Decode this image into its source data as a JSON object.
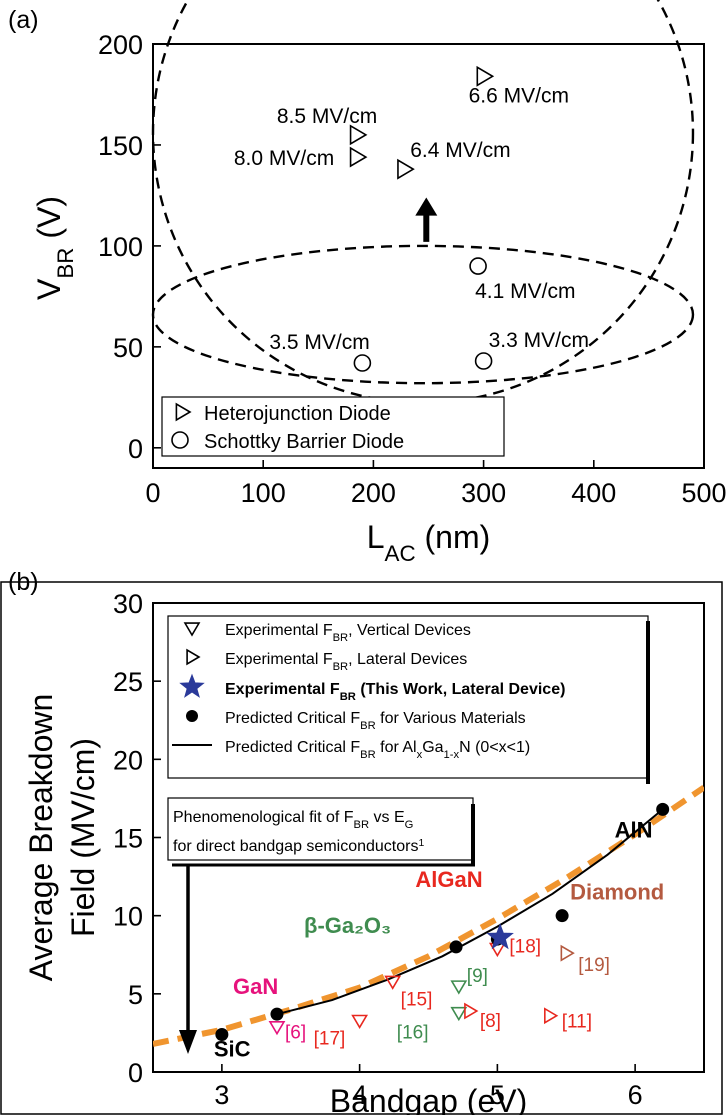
{
  "chart_data": [
    {
      "panel": "(a)",
      "type": "scatter",
      "xlabel_main": "L",
      "xlabel_sub": "AC",
      "xlabel_unit": " (nm)",
      "ylabel_main": "V",
      "ylabel_sub": "BR",
      "ylabel_unit": " (V)",
      "xlim": [
        0,
        500
      ],
      "ylim": [
        -10,
        200
      ],
      "xticks": [
        0,
        100,
        200,
        300,
        400,
        500
      ],
      "yticks": [
        0,
        50,
        100,
        150,
        200
      ],
      "legend_position": "bottom-left",
      "series": [
        {
          "name": "Heterojunction Diode",
          "marker": "triangle-right",
          "points": [
            {
              "x": 300,
              "y": 184,
              "label": "6.6 MV/cm"
            },
            {
              "x": 185,
              "y": 155,
              "label": "8.5 MV/cm"
            },
            {
              "x": 185,
              "y": 144,
              "label": "8.0 MV/cm"
            },
            {
              "x": 228,
              "y": 138,
              "label": "6.4 MV/cm"
            }
          ]
        },
        {
          "name": "Schottky Barrier Diode",
          "marker": "circle",
          "points": [
            {
              "x": 295,
              "y": 90,
              "label": "4.1 MV/cm"
            },
            {
              "x": 190,
              "y": 42,
              "label": "3.5 MV/cm"
            },
            {
              "x": 300,
              "y": 43,
              "label": "3.3 MV/cm"
            }
          ]
        }
      ],
      "annotations": [
        "dashed ellipse around heterojunction points",
        "dashed ellipse around schottky points",
        "upward arrow between groups"
      ]
    },
    {
      "panel": "(b)",
      "type": "scatter",
      "xlabel": "Bandgap (eV)",
      "ylabel_line1": "Average Breakdown",
      "ylabel_line2": "Field (MV/cm)",
      "xlim": [
        2.5,
        6.5
      ],
      "ylim": [
        0,
        30
      ],
      "xticks": [
        3,
        4,
        5,
        6
      ],
      "yticks": [
        0,
        5,
        10,
        15,
        20,
        25,
        30
      ],
      "legend_position": "top",
      "legend": [
        {
          "marker": "triangle-down",
          "text": "Experimental F",
          "sub": "BR",
          "rest": ", Vertical Devices",
          "bold": false
        },
        {
          "marker": "triangle-right",
          "text": "Experimental F",
          "sub": "BR",
          "rest": ", Lateral Devices",
          "bold": false
        },
        {
          "marker": "star",
          "text": "Experimental F",
          "sub": "BR",
          "rest": " (This Work, Lateral Device)",
          "bold": true
        },
        {
          "marker": "dot",
          "text": "Predicted Critical F",
          "sub": "BR",
          "rest": " for Various Materials",
          "bold": false
        },
        {
          "marker": "line",
          "text": "Predicted Critical F",
          "sub": "BR",
          "rest": " for Al",
          "sub2": "x",
          "rest2": "Ga",
          "sub3": "1-x",
          "rest3": "N (0<x<1)",
          "bold": false
        }
      ],
      "fit_box_line1": "Phenomenological fit of F",
      "fit_box_line1_sub": "BR",
      "fit_box_line1_rest": " vs E",
      "fit_box_line1_sub2": "G",
      "fit_box_line2": "for direct bandgap semiconductors",
      "fit_box_line2_sup": "1",
      "materials": [
        {
          "name": "SiC",
          "x": 3.0,
          "y": 2.4,
          "color": "#000000"
        },
        {
          "name": "GaN",
          "x": 3.4,
          "y": 3.7,
          "color": "#e6127c"
        },
        {
          "name": "β-Ga₂O₃",
          "x": 4.7,
          "y": 8.0,
          "color": "#3f8c4f"
        },
        {
          "name": "AlGaN",
          "x": 5.0,
          "y": 8.5,
          "color": "#e8281f"
        },
        {
          "name": "Diamond",
          "x": 5.47,
          "y": 10.0,
          "color": "#b45a40"
        },
        {
          "name": "AlN",
          "x": 6.2,
          "y": 16.8,
          "color": "#000000"
        }
      ],
      "vertical_devices": [
        {
          "x": 3.4,
          "y": 2.9,
          "ref": "[6]",
          "color": "#e6127c"
        },
        {
          "x": 4.0,
          "y": 3.3,
          "ref": "[17]",
          "color": "#e8281f"
        },
        {
          "x": 4.24,
          "y": 5.8,
          "ref": "[15]",
          "color": "#e8281f"
        },
        {
          "x": 4.72,
          "y": 5.5,
          "ref": "[9]",
          "color": "#3f8c4f"
        },
        {
          "x": 4.72,
          "y": 3.8,
          "ref": "[16]",
          "color": "#3f8c4f"
        },
        {
          "x": 5.0,
          "y": 7.9,
          "ref": "[18]",
          "color": "#e8281f"
        }
      ],
      "lateral_devices": [
        {
          "x": 4.8,
          "y": 3.9,
          "ref": "[8]",
          "color": "#e8281f"
        },
        {
          "x": 5.38,
          "y": 3.6,
          "ref": "[11]",
          "color": "#e8281f"
        },
        {
          "x": 5.5,
          "y": 7.6,
          "ref": "[19]",
          "color": "#b45a40"
        }
      ],
      "this_work": {
        "x": 5.02,
        "y": 8.6,
        "color": "#2b3a9a"
      },
      "fit_curve": {
        "color": "#f0952f",
        "x": [
          2.5,
          3.0,
          3.5,
          4.0,
          4.5,
          5.0,
          5.5,
          6.0,
          6.5
        ],
        "y": [
          1.8,
          2.7,
          4.0,
          5.4,
          7.4,
          9.8,
          12.4,
          15.2,
          18.2
        ]
      },
      "algan_curve": {
        "color": "#000000",
        "x": [
          3.4,
          3.8,
          4.2,
          4.6,
          5.0,
          5.4,
          5.8,
          6.2
        ],
        "y": [
          3.7,
          4.6,
          5.9,
          7.4,
          9.3,
          11.4,
          13.9,
          16.8
        ]
      }
    }
  ]
}
